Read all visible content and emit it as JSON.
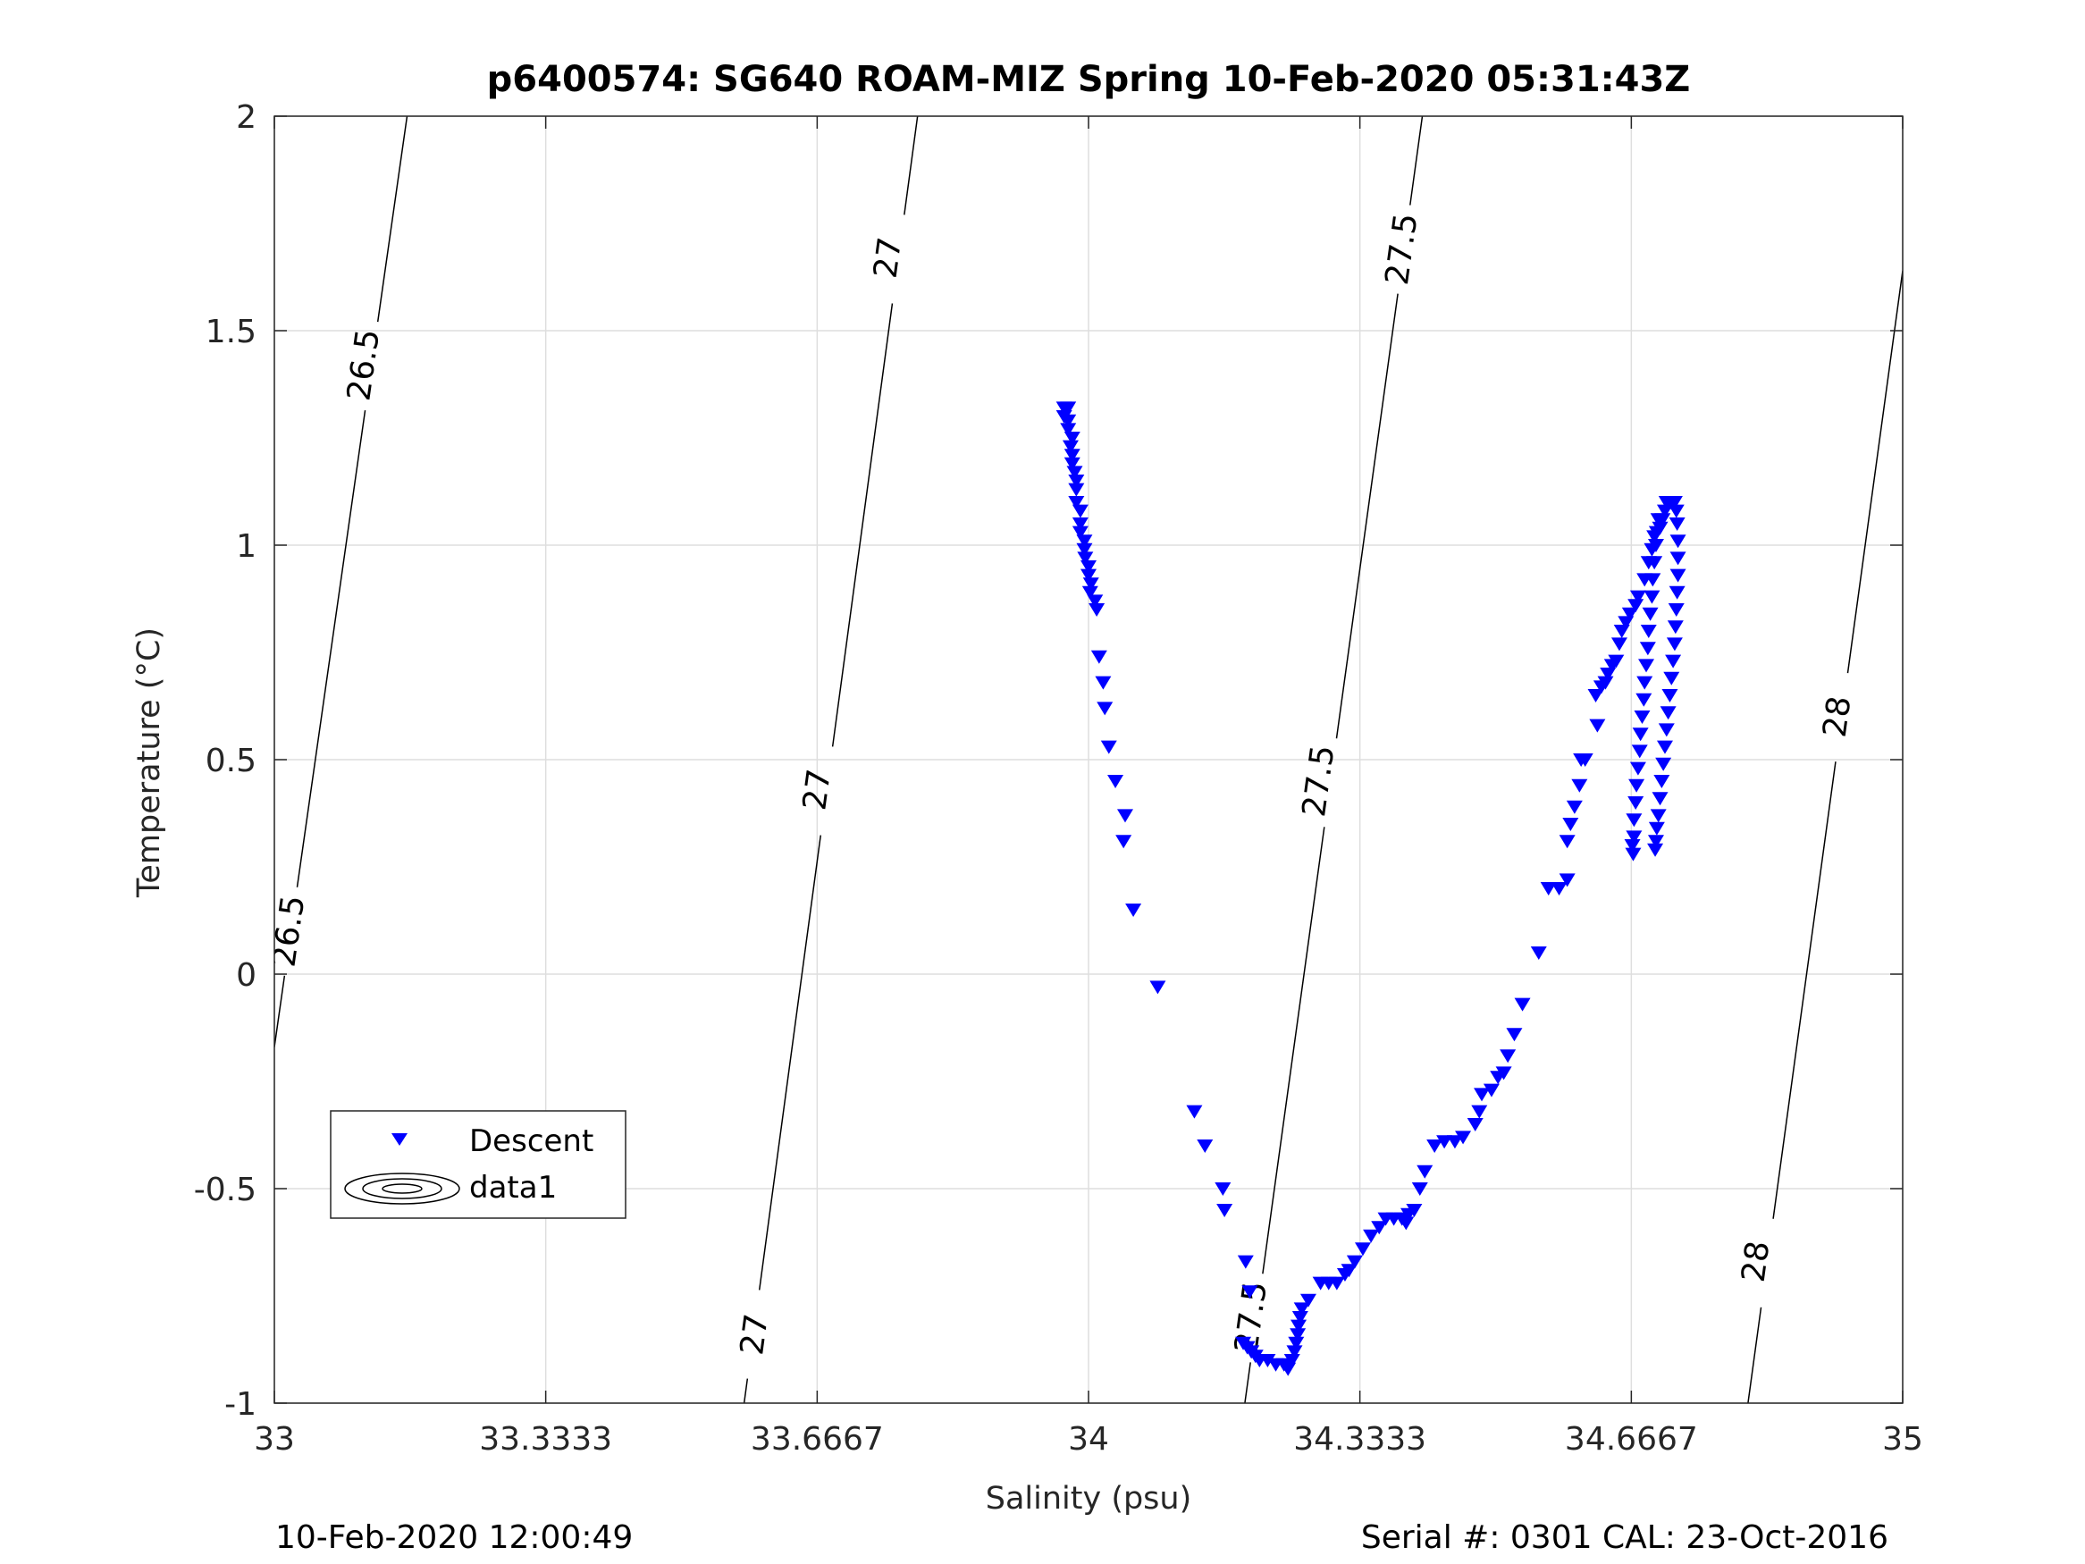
{
  "chart_data": {
    "type": "scatter",
    "title": "p6400574: SG640 ROAM-MIZ Spring 10-Feb-2020 05:31:43Z",
    "xlabel": "Salinity (psu)",
    "ylabel": "Temperature (°C)",
    "xlim": [
      33,
      35
    ],
    "ylim": [
      -1,
      2
    ],
    "xticks": [
      33,
      33.3333,
      33.6667,
      34,
      34.3333,
      34.6667,
      35
    ],
    "xtick_labels": [
      "33",
      "33.3333",
      "33.6667",
      "34",
      "34.3333",
      "34.6667",
      "35"
    ],
    "yticks": [
      -1,
      -0.5,
      0,
      0.5,
      1,
      1.5,
      2
    ],
    "ytick_labels": [
      "-1",
      "-0.5",
      "0",
      "0.5",
      "1",
      "1.5",
      "2"
    ],
    "grid": true,
    "legend_position": "lower-left",
    "legend": [
      {
        "label": "Descent",
        "marker": "triangle-down",
        "color": "#0000ff"
      },
      {
        "label": "data1",
        "marker": "contour",
        "color": "#000000"
      }
    ],
    "series": [
      {
        "name": "Descent",
        "marker": "triangle-down",
        "color": "#0000ff",
        "points": [
          [
            33.97,
            1.32
          ],
          [
            33.975,
            1.32
          ],
          [
            33.97,
            1.3
          ],
          [
            33.975,
            1.29
          ],
          [
            33.975,
            1.27
          ],
          [
            33.98,
            1.25
          ],
          [
            33.978,
            1.23
          ],
          [
            33.98,
            1.21
          ],
          [
            33.98,
            1.19
          ],
          [
            33.983,
            1.17
          ],
          [
            33.985,
            1.15
          ],
          [
            33.985,
            1.13
          ],
          [
            33.985,
            1.1
          ],
          [
            33.99,
            1.08
          ],
          [
            33.99,
            1.05
          ],
          [
            33.99,
            1.03
          ],
          [
            33.995,
            1.01
          ],
          [
            33.995,
            0.99
          ],
          [
            33.996,
            0.97
          ],
          [
            34.0,
            0.95
          ],
          [
            34.0,
            0.93
          ],
          [
            34.003,
            0.91
          ],
          [
            34.002,
            0.89
          ],
          [
            34.008,
            0.87
          ],
          [
            34.01,
            0.85
          ],
          [
            34.013,
            0.74
          ],
          [
            34.018,
            0.68
          ],
          [
            34.02,
            0.62
          ],
          [
            34.025,
            0.53
          ],
          [
            34.033,
            0.45
          ],
          [
            34.045,
            0.37
          ],
          [
            34.043,
            0.31
          ],
          [
            34.055,
            0.15
          ],
          [
            34.085,
            -0.03
          ],
          [
            34.13,
            -0.32
          ],
          [
            34.143,
            -0.4
          ],
          [
            34.165,
            -0.5
          ],
          [
            34.167,
            -0.55
          ],
          [
            34.193,
            -0.67
          ],
          [
            34.198,
            -0.74
          ],
          [
            34.19,
            -0.86
          ],
          [
            34.195,
            -0.87
          ],
          [
            34.2,
            -0.88
          ],
          [
            34.205,
            -0.89
          ],
          [
            34.21,
            -0.9
          ],
          [
            34.22,
            -0.9
          ],
          [
            34.23,
            -0.91
          ],
          [
            34.24,
            -0.91
          ],
          [
            34.245,
            -0.92
          ],
          [
            34.25,
            -0.9
          ],
          [
            34.253,
            -0.88
          ],
          [
            34.255,
            -0.86
          ],
          [
            34.257,
            -0.84
          ],
          [
            34.258,
            -0.82
          ],
          [
            34.26,
            -0.8
          ],
          [
            34.262,
            -0.78
          ],
          [
            34.27,
            -0.76
          ],
          [
            34.285,
            -0.72
          ],
          [
            34.295,
            -0.72
          ],
          [
            34.305,
            -0.72
          ],
          [
            34.315,
            -0.7
          ],
          [
            34.32,
            -0.69
          ],
          [
            34.327,
            -0.67
          ],
          [
            34.337,
            -0.64
          ],
          [
            34.347,
            -0.61
          ],
          [
            34.357,
            -0.59
          ],
          [
            34.365,
            -0.57
          ],
          [
            34.375,
            -0.57
          ],
          [
            34.385,
            -0.57
          ],
          [
            34.393,
            -0.56
          ],
          [
            34.39,
            -0.58
          ],
          [
            34.4,
            -0.55
          ],
          [
            34.407,
            -0.5
          ],
          [
            34.413,
            -0.46
          ],
          [
            34.425,
            -0.4
          ],
          [
            34.437,
            -0.39
          ],
          [
            34.45,
            -0.39
          ],
          [
            34.46,
            -0.38
          ],
          [
            34.475,
            -0.35
          ],
          [
            34.48,
            -0.32
          ],
          [
            34.483,
            -0.28
          ],
          [
            34.495,
            -0.27
          ],
          [
            34.503,
            -0.24
          ],
          [
            34.51,
            -0.23
          ],
          [
            34.515,
            -0.19
          ],
          [
            34.523,
            -0.14
          ],
          [
            34.533,
            -0.07
          ],
          [
            34.553,
            0.05
          ],
          [
            34.565,
            0.2
          ],
          [
            34.578,
            0.2
          ],
          [
            34.588,
            0.22
          ],
          [
            34.588,
            0.31
          ],
          [
            34.592,
            0.35
          ],
          [
            34.597,
            0.39
          ],
          [
            34.603,
            0.44
          ],
          [
            34.605,
            0.5
          ],
          [
            34.61,
            0.5
          ],
          [
            34.625,
            0.58
          ],
          [
            34.623,
            0.65
          ],
          [
            34.63,
            0.67
          ],
          [
            34.635,
            0.68
          ],
          [
            34.638,
            0.7
          ],
          [
            34.643,
            0.72
          ],
          [
            34.648,
            0.73
          ],
          [
            34.652,
            0.77
          ],
          [
            34.655,
            0.8
          ],
          [
            34.66,
            0.82
          ],
          [
            34.665,
            0.84
          ],
          [
            34.672,
            0.86
          ],
          [
            34.675,
            0.88
          ],
          [
            34.683,
            0.92
          ],
          [
            34.688,
            0.96
          ],
          [
            34.692,
            0.99
          ],
          [
            34.695,
            1.02
          ],
          [
            34.702,
            1.04
          ],
          [
            34.705,
            1.06
          ],
          [
            34.708,
            1.08
          ],
          [
            34.71,
            1.1
          ],
          [
            34.715,
            1.1
          ],
          [
            34.72,
            1.1
          ],
          [
            34.722,
            1.08
          ],
          [
            34.723,
            1.05
          ],
          [
            34.724,
            1.01
          ],
          [
            34.724,
            0.97
          ],
          [
            34.724,
            0.93
          ],
          [
            34.723,
            0.89
          ],
          [
            34.722,
            0.85
          ],
          [
            34.721,
            0.81
          ],
          [
            34.72,
            0.77
          ],
          [
            34.718,
            0.73
          ],
          [
            34.716,
            0.69
          ],
          [
            34.714,
            0.65
          ],
          [
            34.712,
            0.61
          ],
          [
            34.71,
            0.57
          ],
          [
            34.708,
            0.53
          ],
          [
            34.706,
            0.49
          ],
          [
            34.704,
            0.45
          ],
          [
            34.702,
            0.41
          ],
          [
            34.7,
            0.37
          ],
          [
            34.698,
            0.34
          ],
          [
            34.697,
            0.31
          ],
          [
            34.696,
            0.29
          ],
          [
            34.669,
            0.28
          ],
          [
            34.668,
            0.3
          ],
          [
            34.67,
            0.32
          ],
          [
            34.67,
            0.36
          ],
          [
            34.672,
            0.4
          ],
          [
            34.673,
            0.44
          ],
          [
            34.675,
            0.48
          ],
          [
            34.677,
            0.52
          ],
          [
            34.678,
            0.56
          ],
          [
            34.68,
            0.6
          ],
          [
            34.682,
            0.64
          ],
          [
            34.683,
            0.68
          ],
          [
            34.685,
            0.72
          ],
          [
            34.687,
            0.76
          ],
          [
            34.688,
            0.8
          ],
          [
            34.69,
            0.84
          ],
          [
            34.692,
            0.88
          ],
          [
            34.693,
            0.92
          ],
          [
            34.695,
            0.96
          ],
          [
            34.697,
            1.0
          ],
          [
            34.698,
            1.03
          ],
          [
            34.7,
            1.06
          ]
        ]
      }
    ],
    "contours": [
      {
        "label": "26.5",
        "line": [
          [
            33.163,
            2.0
          ],
          [
            33.0,
            -0.17
          ]
        ],
        "label_at": [
          [
            33.11,
            1.42
          ],
          [
            33.018,
            0.1
          ]
        ]
      },
      {
        "label": "27",
        "line": [
          [
            33.79,
            2.0
          ],
          [
            33.577,
            -1.0
          ]
        ],
        "label_at": [
          [
            33.754,
            1.67
          ],
          [
            33.667,
            0.43
          ],
          [
            33.59,
            -0.84
          ]
        ]
      },
      {
        "label": "27.5",
        "line": [
          [
            34.41,
            2.0
          ],
          [
            34.192,
            -1.0
          ]
        ],
        "label_at": [
          [
            34.385,
            1.69
          ],
          [
            34.283,
            0.45
          ],
          [
            34.2,
            -0.8
          ]
        ]
      },
      {
        "label": "28",
        "line": [
          [
            35.0,
            1.64
          ],
          [
            34.81,
            -1.0
          ]
        ],
        "label_at": [
          [
            34.92,
            0.6
          ],
          [
            34.82,
            -0.67
          ]
        ]
      }
    ]
  },
  "footer": {
    "timestamp": "10-Feb-2020 12:00:49",
    "serial_cal": "Serial #: 0301  CAL: 23-Oct-2016"
  }
}
